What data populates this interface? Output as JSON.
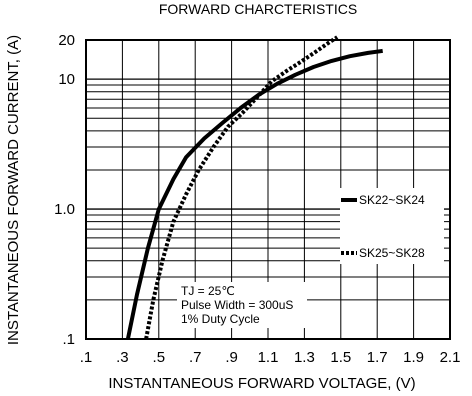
{
  "chart_data": {
    "type": "line",
    "title": "FORWARD CHARCTERISTICS",
    "xlabel": "INSTANTANEOUS FORWARD VOLTAGE, (V)",
    "ylabel": "INSTANTANEOUS FORWARD CURRENT, (A)",
    "xlim": [
      0.1,
      2.1
    ],
    "ylim": [
      0.1,
      20
    ],
    "yscale": "log",
    "grid": true,
    "x_tick_labels": [
      ".1",
      ".3",
      ".5",
      ".7",
      ".9",
      "1.1",
      "1.3",
      "1.5",
      "1.7",
      "1.9",
      "2.1"
    ],
    "x_tick_values": [
      0.1,
      0.3,
      0.5,
      0.7,
      0.9,
      1.1,
      1.3,
      1.5,
      1.7,
      1.9,
      2.1
    ],
    "y_tick_labels": [
      "20",
      "10",
      "1.0",
      ".1"
    ],
    "y_tick_values": [
      20,
      10,
      1,
      0.1
    ],
    "series": [
      {
        "name": "SK22~SK24",
        "style": "solid",
        "x": [
          0.33,
          0.38,
          0.44,
          0.5,
          0.58,
          0.65,
          0.75,
          0.85,
          0.95,
          1.05,
          1.15,
          1.25,
          1.35,
          1.45,
          1.55,
          1.65,
          1.73
        ],
        "y": [
          0.1,
          0.22,
          0.5,
          1.0,
          1.7,
          2.5,
          3.5,
          4.6,
          6.0,
          7.6,
          9.2,
          10.8,
          12.4,
          13.8,
          15.0,
          15.9,
          16.5
        ]
      },
      {
        "name": "SK25~SK28",
        "style": "dotted",
        "x": [
          0.43,
          0.47,
          0.52,
          0.58,
          0.65,
          0.72,
          0.8,
          0.88,
          0.96,
          1.05,
          1.12,
          1.2,
          1.28,
          1.35,
          1.42,
          1.48
        ],
        "y": [
          0.1,
          0.2,
          0.4,
          0.8,
          1.3,
          2.0,
          3.0,
          4.3,
          5.5,
          7.5,
          9.6,
          11.5,
          13.6,
          15.8,
          18.5,
          21.0
        ]
      }
    ],
    "annotations": [
      "TJ = 25℃",
      "Pulse Width = 300uS",
      "1% Duty Cycle"
    ],
    "legend_placement": "right"
  }
}
